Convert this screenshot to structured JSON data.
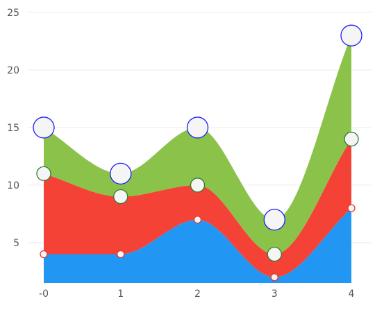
{
  "chart_data": {
    "type": "area",
    "stacked": true,
    "smooth": true,
    "title": "",
    "xlabel": "",
    "ylabel": "",
    "x": [
      0,
      1,
      2,
      3,
      4
    ],
    "x_tick_labels": [
      "-0",
      "1",
      "2",
      "3",
      "4"
    ],
    "y_ticks": [
      5,
      10,
      15,
      20,
      25
    ],
    "y_tick_labels": [
      "5",
      "10",
      "15",
      "20",
      "25"
    ],
    "ylim": [
      1.5,
      25
    ],
    "grid": "horizontal",
    "legend": "none",
    "series": [
      {
        "values": [
          4,
          4,
          7,
          2,
          8
        ],
        "color": "#2196f3",
        "marker_stroke": "#e53935",
        "marker_size": "small"
      },
      {
        "values": [
          7,
          5,
          3,
          2,
          6
        ],
        "color": "#f44336",
        "marker_stroke": "#2e7d32",
        "marker_size": "medium"
      },
      {
        "values": [
          4,
          2,
          5,
          3,
          9
        ],
        "color": "#8bc34a",
        "marker_stroke": "#1a1aff",
        "marker_size": "large"
      }
    ],
    "marker_fill": "#f5f5f5"
  }
}
